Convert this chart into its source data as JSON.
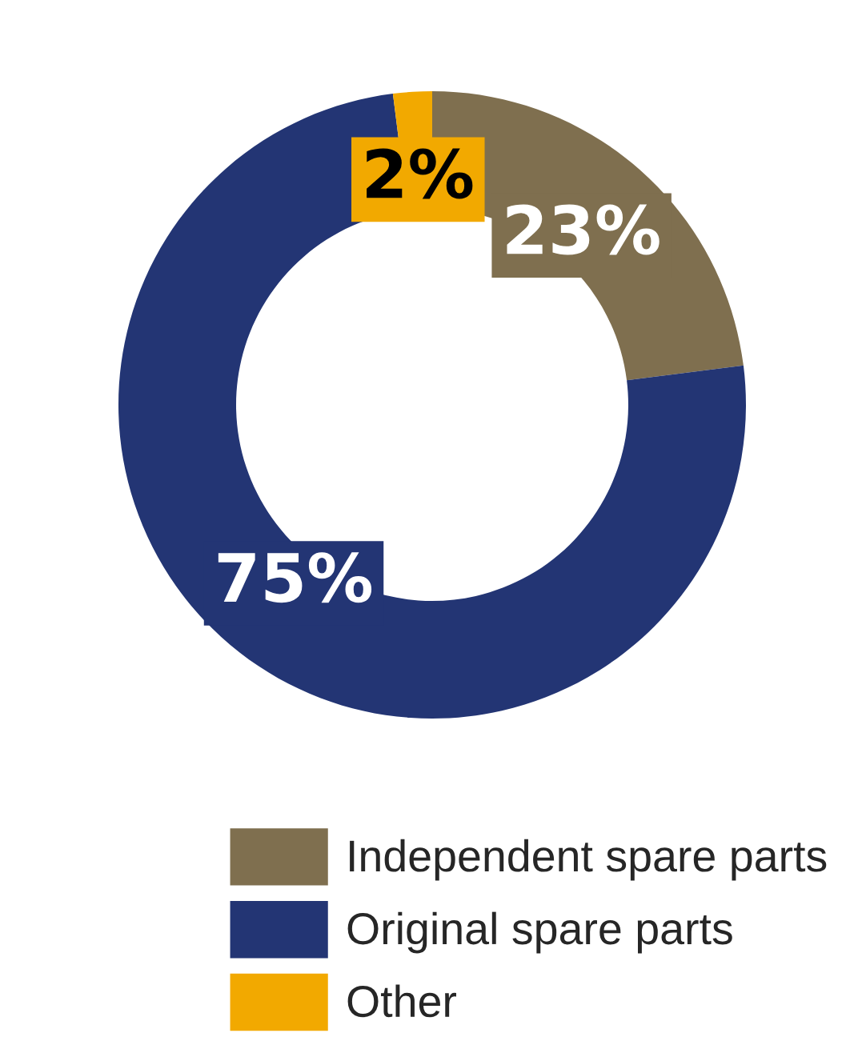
{
  "chart_data": {
    "type": "donut",
    "categories": [
      "Independent spare parts",
      "Original spare parts",
      "Other"
    ],
    "values": [
      23,
      75,
      2
    ],
    "colors": [
      "#7f6f4f",
      "#233574",
      "#f2a900"
    ],
    "value_labels": [
      "23%",
      "75%",
      "2%"
    ],
    "legend": "bottom right"
  }
}
